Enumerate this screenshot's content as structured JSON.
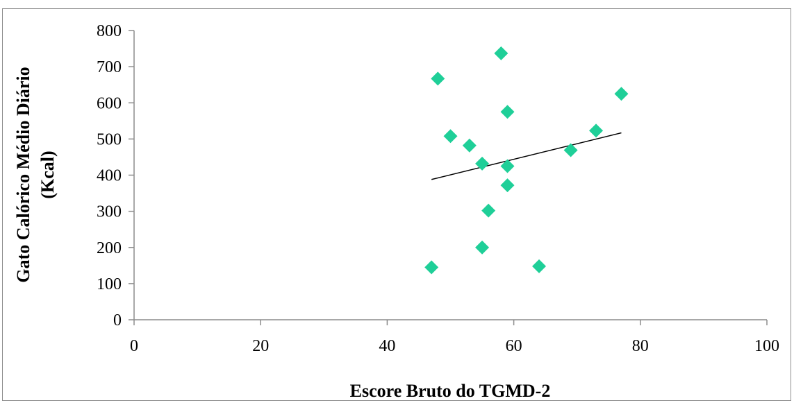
{
  "chart_data": {
    "type": "scatter",
    "title": "",
    "xlabel": "Escore Bruto do TGMD-2",
    "ylabel_lines": [
      "Gato Calórico Médio Diário",
      "(Kcal)"
    ],
    "xlim": [
      0,
      100
    ],
    "ylim": [
      0,
      800
    ],
    "xticks": [
      0,
      20,
      40,
      60,
      80,
      100
    ],
    "yticks": [
      0,
      100,
      200,
      300,
      400,
      500,
      600,
      700,
      800
    ],
    "grid": false,
    "legend": "none",
    "marker": "diamond",
    "marker_color": "#1fcf98",
    "trendline_color": "#000000",
    "points": [
      {
        "x": 47,
        "y": 145
      },
      {
        "x": 48,
        "y": 667
      },
      {
        "x": 50,
        "y": 508
      },
      {
        "x": 53,
        "y": 482
      },
      {
        "x": 55,
        "y": 432
      },
      {
        "x": 55,
        "y": 200
      },
      {
        "x": 56,
        "y": 302
      },
      {
        "x": 58,
        "y": 737
      },
      {
        "x": 59,
        "y": 575
      },
      {
        "x": 59,
        "y": 425
      },
      {
        "x": 59,
        "y": 372
      },
      {
        "x": 64,
        "y": 148
      },
      {
        "x": 69,
        "y": 469
      },
      {
        "x": 73,
        "y": 523
      },
      {
        "x": 77,
        "y": 625
      }
    ],
    "trendline": {
      "type": "linear",
      "start": {
        "x": 47,
        "y": 388
      },
      "end": {
        "x": 77,
        "y": 517
      }
    }
  }
}
